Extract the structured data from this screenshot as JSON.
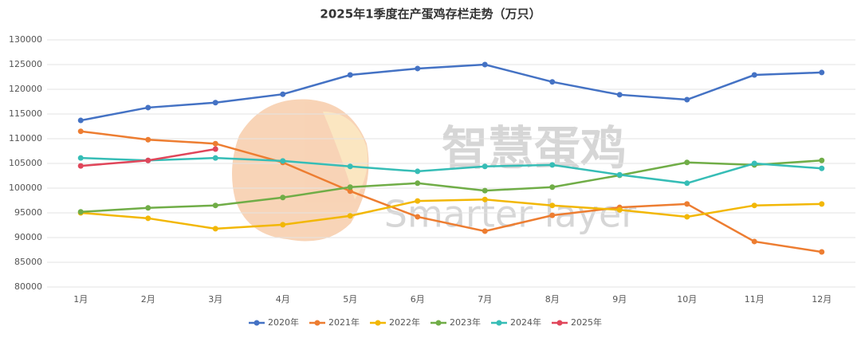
{
  "chart_data": {
    "type": "line",
    "title": "2025年1季度在产蛋鸡存栏走势（万只）",
    "watermark": [
      "智慧蛋鸡",
      "Smarter layer"
    ],
    "categories": [
      "1月",
      "2月",
      "3月",
      "4月",
      "5月",
      "6月",
      "7月",
      "8月",
      "9月",
      "10月",
      "11月",
      "12月"
    ],
    "series": [
      {
        "name": "2020年",
        "color": "#4472c4",
        "values": [
          113700,
          116300,
          117300,
          119000,
          122900,
          124200,
          125000,
          121500,
          118900,
          117900,
          122900,
          123400
        ]
      },
      {
        "name": "2021年",
        "color": "#ed7d31",
        "values": [
          111500,
          109800,
          109000,
          105200,
          99400,
          94200,
          91300,
          94500,
          96100,
          96800,
          89200,
          87100
        ]
      },
      {
        "name": "2022年",
        "color": "#f2b705",
        "values": [
          95000,
          93900,
          91800,
          92600,
          94400,
          97400,
          97700,
          96500,
          95600,
          94200,
          96500,
          96800
        ]
      },
      {
        "name": "2023年",
        "color": "#70ad47",
        "values": [
          95200,
          96000,
          96500,
          98100,
          100200,
          101000,
          99500,
          100200,
          102600,
          105200,
          104700,
          105600
        ]
      },
      {
        "name": "2024年",
        "color": "#36bdb6",
        "values": [
          106100,
          105600,
          106100,
          105500,
          104400,
          103400,
          104400,
          104700,
          102700,
          101000,
          105000,
          104000
        ]
      },
      {
        "name": "2025年",
        "color": "#e0465a",
        "values": [
          104500,
          105600,
          107900,
          null,
          null,
          null,
          null,
          null,
          null,
          null,
          null,
          null
        ]
      }
    ],
    "ylim": [
      80000,
      130000
    ],
    "yticks": [
      80000,
      85000,
      90000,
      95000,
      100000,
      105000,
      110000,
      115000,
      120000,
      125000,
      130000
    ],
    "grid": true,
    "legend": "bottom"
  }
}
